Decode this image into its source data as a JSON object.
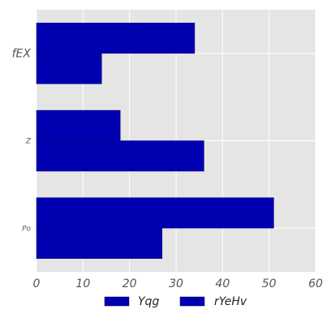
{
  "chart_data": {
    "type": "bar",
    "orientation": "horizontal",
    "categories": [
      "Po",
      "Z",
      "fEX"
    ],
    "series": [
      {
        "name": "Yqg",
        "values": [
          51,
          18,
          34
        ]
      },
      {
        "name": "rYeHv",
        "values": [
          27,
          36,
          14
        ]
      }
    ],
    "xlim": [
      0,
      60
    ],
    "xticks": [
      "0",
      "10",
      "20",
      "30",
      "40",
      "50",
      "60"
    ],
    "grid": true,
    "legend_position": "bottom",
    "colors": {
      "bar": "#0000b0",
      "plot_background": "#e5e5e5",
      "grid": "#ffffff"
    }
  }
}
